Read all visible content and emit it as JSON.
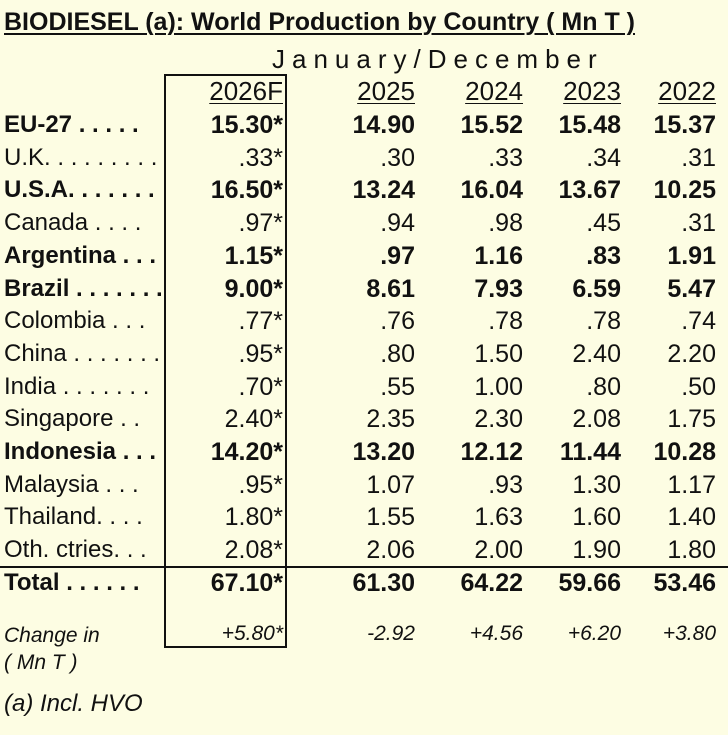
{
  "title": "BIODIESEL (a):   World Production by Country ( Mn T )",
  "period": "January/December",
  "years": [
    "2026F",
    "2025",
    "2024",
    "2023",
    "2022"
  ],
  "rows": [
    {
      "label": "EU-27",
      "dots": " . . . . .",
      "bold": true,
      "values": [
        "15.30*",
        "14.90",
        "15.52",
        "15.48",
        "15.37"
      ]
    },
    {
      "label": "U.K.",
      "dots": " . . . . . . . .",
      "bold": false,
      "values": [
        ".33*",
        ".30",
        ".33",
        ".34",
        ".31"
      ]
    },
    {
      "label": "U.S.A.",
      "dots": " . . . . . .",
      "bold": true,
      "values": [
        "16.50*",
        "13.24",
        "16.04",
        "13.67",
        "10.25"
      ]
    },
    {
      "label": "Canada",
      "dots": " . . . .",
      "bold": false,
      "values": [
        ".97*",
        ".94",
        ".98",
        ".45",
        ".31"
      ]
    },
    {
      "label": "Argentina",
      "dots": " . . .",
      "bold": true,
      "values": [
        "1.15*",
        ".97",
        "1.16",
        ".83",
        "1.91"
      ]
    },
    {
      "label": "Brazil",
      "dots": " . . . . . . .",
      "bold": true,
      "values": [
        "9.00*",
        "8.61",
        "7.93",
        "6.59",
        "5.47"
      ]
    },
    {
      "label": "Colombia",
      "dots": " . . .",
      "bold": false,
      "values": [
        ".77*",
        ".76",
        ".78",
        ".78",
        ".74"
      ]
    },
    {
      "label": "China",
      "dots": " . . . . . . .",
      "bold": false,
      "values": [
        ".95*",
        ".80",
        "1.50",
        "2.40",
        "2.20"
      ]
    },
    {
      "label": "India",
      "dots": " . . . . . . .",
      "bold": false,
      "values": [
        ".70*",
        ".55",
        "1.00",
        ".80",
        ".50"
      ]
    },
    {
      "label": "Singapore",
      "dots": " . .",
      "bold": false,
      "values": [
        "2.40*",
        "2.35",
        "2.30",
        "2.08",
        "1.75"
      ]
    },
    {
      "label": "Indonesia",
      "dots": " . . .",
      "bold": true,
      "values": [
        "14.20*",
        "13.20",
        "12.12",
        "11.44",
        "10.28"
      ]
    },
    {
      "label": "Malaysia",
      "dots": " . . .",
      "bold": false,
      "values": [
        ".95*",
        "1.07",
        ".93",
        "1.30",
        "1.17"
      ]
    },
    {
      "label": "Thailand",
      "dots": ". . . .",
      "bold": false,
      "values": [
        "1.80*",
        "1.55",
        "1.63",
        "1.60",
        "1.40"
      ]
    },
    {
      "label": "Oth. ctries",
      "dots": ". . .",
      "bold": false,
      "values": [
        "2.08*",
        "2.06",
        "2.00",
        "1.90",
        "1.80"
      ]
    }
  ],
  "total": {
    "label": "Total",
    "dots": " . . . . . .",
    "values": [
      "67.10*",
      "61.30",
      "64.22",
      "59.66",
      "53.46"
    ]
  },
  "change": {
    "label_line1": "Change in",
    "label_line2": "( Mn T )",
    "values": [
      "+5.80*",
      "-2.92",
      "+4.56",
      "+6.20",
      "+3.80"
    ]
  },
  "note": "(a) Incl. HVO"
}
